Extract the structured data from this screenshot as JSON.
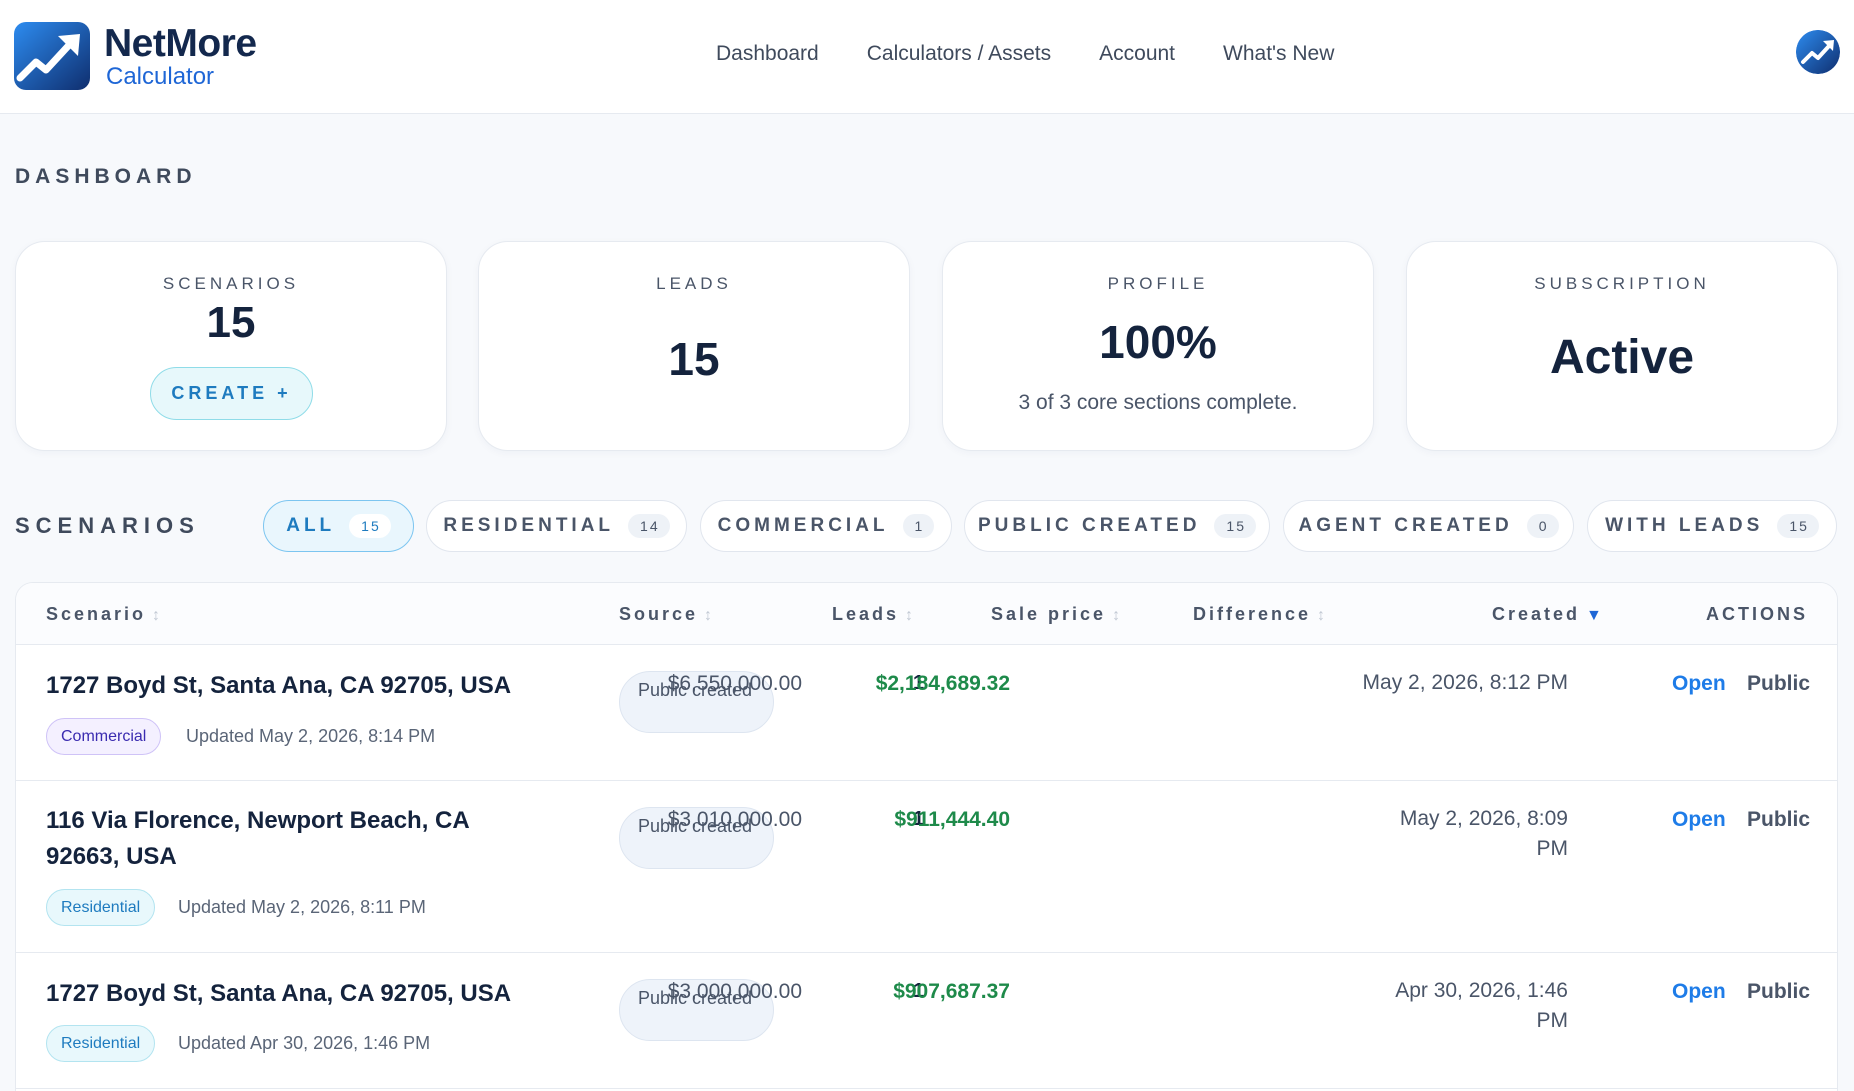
{
  "brand": {
    "name": "NetMore",
    "sub": "Calculator"
  },
  "nav": [
    "Dashboard",
    "Calculators / Assets",
    "Account",
    "What's New"
  ],
  "page": {
    "title": "DASHBOARD"
  },
  "cards": {
    "scenarios": {
      "label": "SCENARIOS",
      "value": "15",
      "button": "CREATE +"
    },
    "leads": {
      "label": "LEADS",
      "value": "15"
    },
    "profile": {
      "label": "PROFILE",
      "value": "100%",
      "sub": "3 of 3 core sections complete."
    },
    "subscription": {
      "label": "SUBSCRIPTION",
      "value": "Active"
    }
  },
  "filters": {
    "label": "SCENARIOS",
    "chips": [
      {
        "label": "ALL",
        "count": "15"
      },
      {
        "label": "RESIDENTIAL",
        "count": "14"
      },
      {
        "label": "COMMERCIAL",
        "count": "1"
      },
      {
        "label": "PUBLIC CREATED",
        "count": "15"
      },
      {
        "label": "AGENT CREATED",
        "count": "0"
      },
      {
        "label": "WITH LEADS",
        "count": "15"
      }
    ]
  },
  "table": {
    "columns": {
      "scenario": "Scenario",
      "source": "Source",
      "leads": "Leads",
      "sale": "Sale price",
      "diff": "Difference",
      "created": "Created",
      "actions": "ACTIONS"
    },
    "rows": [
      {
        "address": "1727 Boyd St, Santa Ana, CA 92705, USA",
        "type": "Commercial",
        "updated": "Updated May 2, 2026, 8:14 PM",
        "source": "Public created",
        "leads": "1",
        "sale": "$6,550,000.00",
        "diff": "$2,184,689.32",
        "created": "May 2, 2026, 8:12 PM",
        "open": "Open",
        "public": "Public"
      },
      {
        "address": "116 Via Florence, Newport Beach, CA 92663, USA",
        "type": "Residential",
        "updated": "Updated May 2, 2026, 8:11 PM",
        "source": "Public created",
        "leads": "1",
        "sale": "$3,010,000.00",
        "diff": "$911,444.40",
        "created": "May 2, 2026, 8:09 PM",
        "open": "Open",
        "public": "Public"
      },
      {
        "address": "1727 Boyd St, Santa Ana, CA 92705, USA",
        "type": "Residential",
        "updated": "Updated Apr 30, 2026, 1:46 PM",
        "source": "Public created",
        "leads": "1",
        "sale": "$3,000,000.00",
        "diff": "$907,687.37",
        "created": "Apr 30, 2026, 1:46 PM",
        "open": "Open",
        "public": "Public"
      }
    ]
  },
  "colors": {
    "accent": "#1e7ce8",
    "brand": "#13284d",
    "positive": "#1e8a4a",
    "chip_active_bg": "#e9f6fd"
  },
  "icons": {
    "logo": "trending-up-logo-icon",
    "avatar": "trending-up-avatar-icon",
    "sort": "sort-updown-icon",
    "sort_active": "sort-down-triangle-icon"
  }
}
